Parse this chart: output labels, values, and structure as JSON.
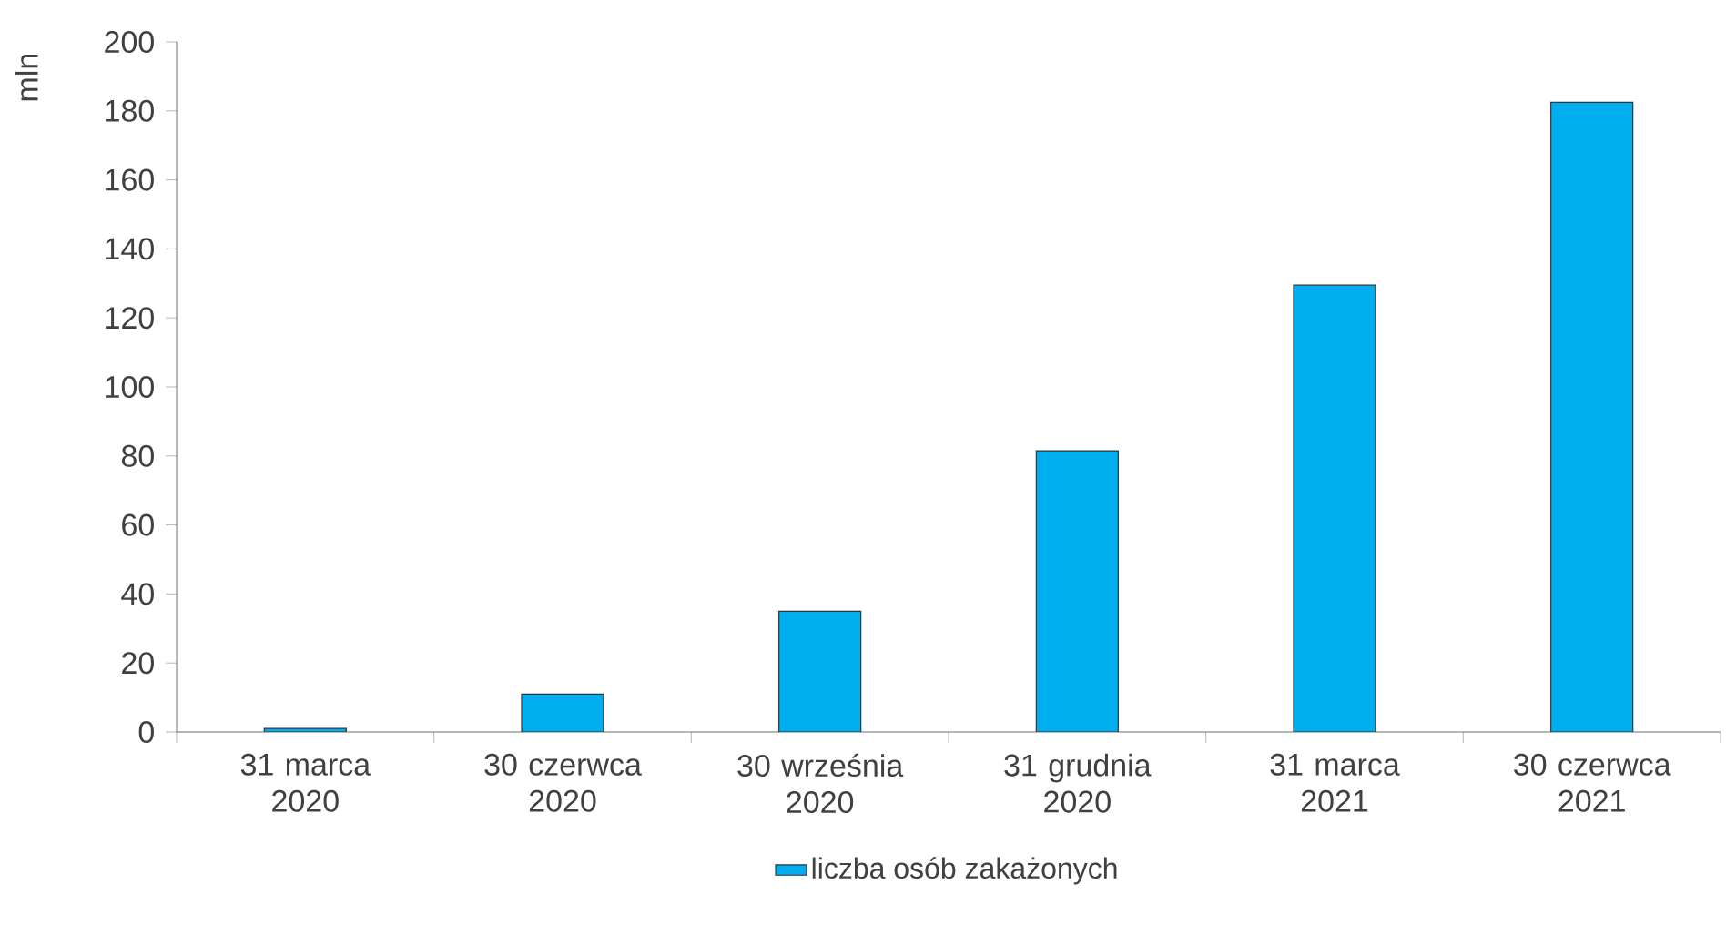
{
  "chart_data": {
    "type": "bar",
    "ylabel": "mln",
    "categories": [
      "31 marca 2020",
      "30 czerwca 2020",
      "30 września 2020",
      "31 grudnia 2020",
      "31 marca 2021",
      "30 czerwca 2021"
    ],
    "series": [
      {
        "name": "liczba osób zakażonych",
        "color": "#00aeef",
        "values": [
          1,
          11,
          35,
          81.5,
          129.5,
          182.5
        ]
      }
    ],
    "ylim": [
      0,
      200
    ],
    "yticks": [
      0,
      20,
      40,
      60,
      80,
      100,
      120,
      140,
      160,
      180,
      200
    ],
    "legend": "bottom",
    "grid": false
  }
}
